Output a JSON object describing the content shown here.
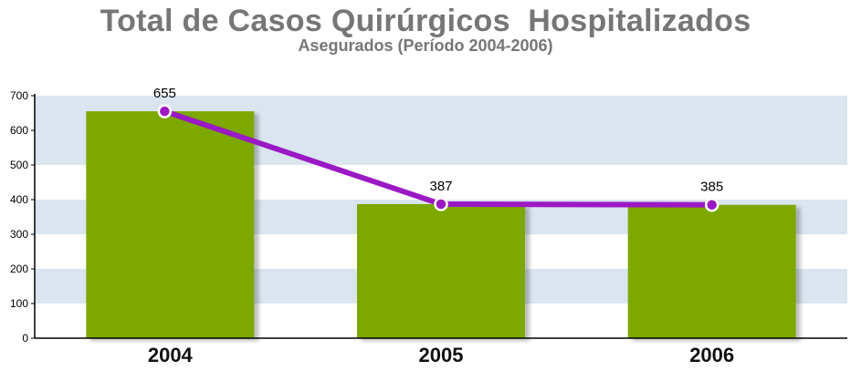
{
  "chart_data": {
    "type": "bar",
    "title": "Total de Casos Quirúrgicos  Hospitalizados",
    "subtitle": "Asegurados (Período 2004-2006)",
    "categories": [
      "2004",
      "2005",
      "2006"
    ],
    "values": [
      655,
      387,
      385
    ],
    "line_values": [
      655,
      387,
      385
    ],
    "data_labels": [
      "655",
      "387",
      "385"
    ],
    "ylim": [
      0,
      700
    ],
    "yticks": [
      "0",
      "100",
      "200",
      "300",
      "400",
      "500",
      "600",
      "700"
    ],
    "grid": true,
    "legend": "none",
    "colors": {
      "bar": "#7da800",
      "line": "#9b19c4",
      "band": "#dbe5f0"
    }
  }
}
